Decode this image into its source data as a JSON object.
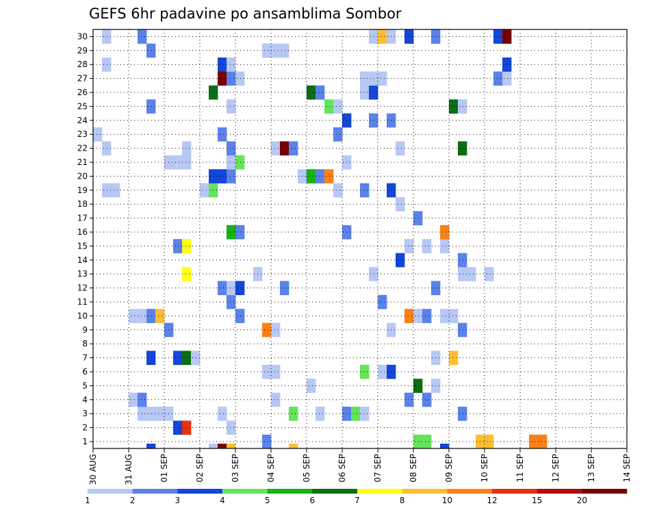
{
  "chart_data": {
    "type": "heatmap",
    "title": "GEFS 6hr padavine po ansamblima Sombor",
    "y_members": [
      "1",
      "2",
      "3",
      "4",
      "5",
      "6",
      "7",
      "8",
      "9",
      "10",
      "11",
      "12",
      "13",
      "14",
      "15",
      "16",
      "17",
      "18",
      "19",
      "20",
      "21",
      "22",
      "23",
      "24",
      "25",
      "26",
      "27",
      "28",
      "29",
      "30"
    ],
    "x_dates": [
      "30 AUG",
      "31 AUG",
      "01 SEP",
      "02 SEP",
      "03 SEP",
      "04 SEP",
      "05 SEP",
      "06 SEP",
      "07 SEP",
      "08 SEP",
      "09 SEP",
      "10 SEP",
      "11 SEP",
      "12 SEP",
      "13 SEP",
      "14 SEP"
    ],
    "x_step": "6 hr",
    "grid": "dotted",
    "colorbar": {
      "position": "bottom",
      "labels": [
        "1",
        "2",
        "3",
        "4",
        "5",
        "6",
        "7",
        "8",
        "10",
        "12",
        "15",
        "20"
      ],
      "colors": [
        "#b7c8f5",
        "#5a82ea",
        "#1446d9",
        "#64e45a",
        "#14b414",
        "#0a6e14",
        "#ffff14",
        "#ffbe32",
        "#fa8214",
        "#e6320f",
        "#b40a0a",
        "#780000"
      ]
    },
    "cells": [
      {
        "member": 1,
        "step": 19,
        "level": 2
      },
      {
        "member": 1,
        "step": 36,
        "level": 4
      },
      {
        "member": 1,
        "step": 37,
        "level": 4
      },
      {
        "member": 1,
        "step": 43,
        "level": 8
      },
      {
        "member": 1,
        "step": 44,
        "level": 8
      },
      {
        "member": 1,
        "step": 49,
        "level": 9
      },
      {
        "member": 1,
        "step": 50,
        "level": 9
      },
      {
        "member": 2,
        "step": 9,
        "level": 3
      },
      {
        "member": 2,
        "step": 10,
        "level": 10
      },
      {
        "member": 2,
        "step": 15,
        "level": 1
      },
      {
        "member": 3,
        "step": 5,
        "level": 1
      },
      {
        "member": 3,
        "step": 6,
        "level": 1
      },
      {
        "member": 3,
        "step": 7,
        "level": 1
      },
      {
        "member": 3,
        "step": 8,
        "level": 1
      },
      {
        "member": 3,
        "step": 14,
        "level": 1
      },
      {
        "member": 3,
        "step": 22,
        "level": 4
      },
      {
        "member": 3,
        "step": 25,
        "level": 1
      },
      {
        "member": 3,
        "step": 28,
        "level": 2
      },
      {
        "member": 3,
        "step": 29,
        "level": 4
      },
      {
        "member": 3,
        "step": 30,
        "level": 1
      },
      {
        "member": 3,
        "step": 41,
        "level": 2
      },
      {
        "member": 4,
        "step": 4,
        "level": 1
      },
      {
        "member": 4,
        "step": 5,
        "level": 2
      },
      {
        "member": 4,
        "step": 20,
        "level": 1
      },
      {
        "member": 4,
        "step": 35,
        "level": 2
      },
      {
        "member": 4,
        "step": 37,
        "level": 2
      },
      {
        "member": 5,
        "step": 24,
        "level": 1
      },
      {
        "member": 5,
        "step": 36,
        "level": 6
      },
      {
        "member": 5,
        "step": 38,
        "level": 1
      },
      {
        "member": 6,
        "step": 19,
        "level": 1
      },
      {
        "member": 6,
        "step": 20,
        "level": 1
      },
      {
        "member": 6,
        "step": 30,
        "level": 4
      },
      {
        "member": 6,
        "step": 32,
        "level": 1
      },
      {
        "member": 6,
        "step": 33,
        "level": 3
      },
      {
        "member": 7,
        "step": 6,
        "level": 3
      },
      {
        "member": 7,
        "step": 9,
        "level": 3
      },
      {
        "member": 7,
        "step": 10,
        "level": 6
      },
      {
        "member": 7,
        "step": 11,
        "level": 1
      },
      {
        "member": 7,
        "step": 38,
        "level": 1
      },
      {
        "member": 7,
        "step": 40,
        "level": 8
      },
      {
        "member": 9,
        "step": 8,
        "level": 2
      },
      {
        "member": 9,
        "step": 19,
        "level": 9
      },
      {
        "member": 9,
        "step": 20,
        "level": 1
      },
      {
        "member": 9,
        "step": 33,
        "level": 1
      },
      {
        "member": 9,
        "step": 41,
        "level": 2
      },
      {
        "member": 10,
        "step": 4,
        "level": 1
      },
      {
        "member": 10,
        "step": 5,
        "level": 1
      },
      {
        "member": 10,
        "step": 6,
        "level": 2
      },
      {
        "member": 10,
        "step": 7,
        "level": 8
      },
      {
        "member": 10,
        "step": 16,
        "level": 2
      },
      {
        "member": 10,
        "step": 35,
        "level": 9
      },
      {
        "member": 10,
        "step": 36,
        "level": 1
      },
      {
        "member": 10,
        "step": 37,
        "level": 2
      },
      {
        "member": 10,
        "step": 39,
        "level": 1
      },
      {
        "member": 10,
        "step": 40,
        "level": 1
      },
      {
        "member": 11,
        "step": 15,
        "level": 2
      },
      {
        "member": 11,
        "step": 32,
        "level": 2
      },
      {
        "member": 12,
        "step": 14,
        "level": 2
      },
      {
        "member": 12,
        "step": 15,
        "level": 1
      },
      {
        "member": 12,
        "step": 16,
        "level": 3
      },
      {
        "member": 12,
        "step": 21,
        "level": 2
      },
      {
        "member": 12,
        "step": 38,
        "level": 2
      },
      {
        "member": 13,
        "step": 10,
        "level": 7
      },
      {
        "member": 13,
        "step": 18,
        "level": 1
      },
      {
        "member": 13,
        "step": 31,
        "level": 1
      },
      {
        "member": 13,
        "step": 41,
        "level": 1
      },
      {
        "member": 13,
        "step": 42,
        "level": 1
      },
      {
        "member": 13,
        "step": 44,
        "level": 1
      },
      {
        "member": 14,
        "step": 34,
        "level": 3
      },
      {
        "member": 14,
        "step": 41,
        "level": 2
      },
      {
        "member": 15,
        "step": 9,
        "level": 2
      },
      {
        "member": 15,
        "step": 10,
        "level": 7
      },
      {
        "member": 15,
        "step": 35,
        "level": 1
      },
      {
        "member": 15,
        "step": 37,
        "level": 1
      },
      {
        "member": 15,
        "step": 39,
        "level": 1
      },
      {
        "member": 16,
        "step": 15,
        "level": 5
      },
      {
        "member": 16,
        "step": 16,
        "level": 2
      },
      {
        "member": 16,
        "step": 28,
        "level": 2
      },
      {
        "member": 16,
        "step": 39,
        "level": 9
      },
      {
        "member": 17,
        "step": 36,
        "level": 2
      },
      {
        "member": 18,
        "step": 34,
        "level": 1
      },
      {
        "member": 19,
        "step": 1,
        "level": 1
      },
      {
        "member": 19,
        "step": 2,
        "level": 1
      },
      {
        "member": 19,
        "step": 12,
        "level": 1
      },
      {
        "member": 19,
        "step": 13,
        "level": 4
      },
      {
        "member": 19,
        "step": 27,
        "level": 1
      },
      {
        "member": 19,
        "step": 30,
        "level": 2
      },
      {
        "member": 19,
        "step": 33,
        "level": 3
      },
      {
        "member": 20,
        "step": 13,
        "level": 3
      },
      {
        "member": 20,
        "step": 14,
        "level": 3
      },
      {
        "member": 20,
        "step": 15,
        "level": 2
      },
      {
        "member": 20,
        "step": 23,
        "level": 1
      },
      {
        "member": 20,
        "step": 24,
        "level": 5
      },
      {
        "member": 20,
        "step": 25,
        "level": 2
      },
      {
        "member": 20,
        "step": 26,
        "level": 9
      },
      {
        "member": 21,
        "step": 8,
        "level": 1
      },
      {
        "member": 21,
        "step": 9,
        "level": 1
      },
      {
        "member": 21,
        "step": 10,
        "level": 1
      },
      {
        "member": 21,
        "step": 15,
        "level": 1
      },
      {
        "member": 21,
        "step": 16,
        "level": 4
      },
      {
        "member": 21,
        "step": 28,
        "level": 1
      },
      {
        "member": 22,
        "step": 1,
        "level": 1
      },
      {
        "member": 22,
        "step": 10,
        "level": 1
      },
      {
        "member": 22,
        "step": 15,
        "level": 2
      },
      {
        "member": 22,
        "step": 20,
        "level": 1
      },
      {
        "member": 22,
        "step": 21,
        "level": 12
      },
      {
        "member": 22,
        "step": 22,
        "level": 2
      },
      {
        "member": 22,
        "step": 34,
        "level": 1
      },
      {
        "member": 22,
        "step": 41,
        "level": 6
      },
      {
        "member": 23,
        "step": 0,
        "level": 1
      },
      {
        "member": 23,
        "step": 14,
        "level": 2
      },
      {
        "member": 23,
        "step": 27,
        "level": 2
      },
      {
        "member": 24,
        "step": 28,
        "level": 3
      },
      {
        "member": 24,
        "step": 31,
        "level": 2
      },
      {
        "member": 24,
        "step": 33,
        "level": 2
      },
      {
        "member": 25,
        "step": 6,
        "level": 2
      },
      {
        "member": 25,
        "step": 15,
        "level": 1
      },
      {
        "member": 25,
        "step": 26,
        "level": 4
      },
      {
        "member": 25,
        "step": 27,
        "level": 1
      },
      {
        "member": 25,
        "step": 40,
        "level": 6
      },
      {
        "member": 25,
        "step": 41,
        "level": 1
      },
      {
        "member": 26,
        "step": 13,
        "level": 6
      },
      {
        "member": 26,
        "step": 24,
        "level": 6
      },
      {
        "member": 26,
        "step": 25,
        "level": 2
      },
      {
        "member": 26,
        "step": 30,
        "level": 1
      },
      {
        "member": 26,
        "step": 31,
        "level": 3
      },
      {
        "member": 27,
        "step": 14,
        "level": 12
      },
      {
        "member": 27,
        "step": 15,
        "level": 2
      },
      {
        "member": 27,
        "step": 16,
        "level": 1
      },
      {
        "member": 27,
        "step": 30,
        "level": 1
      },
      {
        "member": 27,
        "step": 31,
        "level": 1
      },
      {
        "member": 27,
        "step": 32,
        "level": 1
      },
      {
        "member": 27,
        "step": 45,
        "level": 2
      },
      {
        "member": 27,
        "step": 46,
        "level": 1
      },
      {
        "member": 28,
        "step": 1,
        "level": 1
      },
      {
        "member": 28,
        "step": 14,
        "level": 3
      },
      {
        "member": 28,
        "step": 15,
        "level": 1
      },
      {
        "member": 28,
        "step": 46,
        "level": 3
      },
      {
        "member": 29,
        "step": 6,
        "level": 2
      },
      {
        "member": 29,
        "step": 19,
        "level": 1
      },
      {
        "member": 29,
        "step": 20,
        "level": 1
      },
      {
        "member": 29,
        "step": 21,
        "level": 1
      },
      {
        "member": 30,
        "step": 1,
        "level": 1
      },
      {
        "member": 30,
        "step": 5,
        "level": 2
      },
      {
        "member": 30,
        "step": 31,
        "level": 1
      },
      {
        "member": 30,
        "step": 32,
        "level": 8
      },
      {
        "member": 30,
        "step": 33,
        "level": 1
      },
      {
        "member": 30,
        "step": 35,
        "level": 3
      },
      {
        "member": 30,
        "step": 38,
        "level": 2
      },
      {
        "member": 30,
        "step": 45,
        "level": 3
      },
      {
        "member": 30,
        "step": 46,
        "level": 12
      },
      {
        "member": 0,
        "step": 6,
        "level": 3
      },
      {
        "member": 0,
        "step": 13,
        "level": 1
      },
      {
        "member": 0,
        "step": 14,
        "level": 12
      },
      {
        "member": 0,
        "step": 15,
        "level": 8
      },
      {
        "member": 0,
        "step": 22,
        "level": 8
      },
      {
        "member": 0,
        "step": 39,
        "level": 3
      }
    ]
  }
}
